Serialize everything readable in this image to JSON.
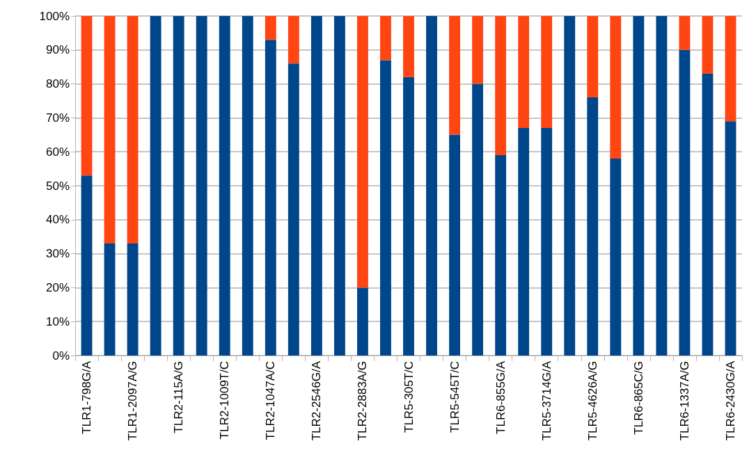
{
  "chart_data": {
    "type": "bar",
    "stacked": true,
    "categories": [
      "TLR1-798G/A",
      null,
      "TLR1-2097A/G",
      null,
      "TLR2-115A/G",
      null,
      "TLR2-1009T/C",
      null,
      "TLR2-1047A/C",
      null,
      "TLR2-2546G/A",
      null,
      "TLR2-2883A/G",
      null,
      "TLR5-305T/C",
      null,
      "TLR5-545T/C",
      null,
      "TLR6-855G/A",
      null,
      "TLR5-3714G/A",
      null,
      "TLR5-4626A/G",
      null,
      "TLR6-865C/G",
      null,
      "TLR6-1337A/G",
      null,
      "TLR6-2430G/A"
    ],
    "series": [
      {
        "color": "#00468b",
        "values": [
          53,
          33,
          33,
          100,
          100,
          100,
          100,
          100,
          93,
          86,
          100,
          100,
          20,
          87,
          82,
          100,
          65,
          80,
          59,
          67,
          67,
          100,
          76,
          58,
          100,
          100,
          90,
          83,
          69
        ]
      },
      {
        "color": "#ff4511",
        "values": [
          47,
          67,
          67,
          0,
          0,
          0,
          0,
          0,
          7,
          14,
          0,
          0,
          80,
          13,
          18,
          0,
          35,
          20,
          41,
          33,
          33,
          0,
          24,
          42,
          0,
          0,
          10,
          17,
          31
        ]
      }
    ],
    "ylim": [
      0,
      100
    ],
    "yticks": [
      {
        "value": 0,
        "label": "0%"
      },
      {
        "value": 10,
        "label": "10%"
      },
      {
        "value": 20,
        "label": "20%"
      },
      {
        "value": 30,
        "label": "30%"
      },
      {
        "value": 40,
        "label": "40%"
      },
      {
        "value": 50,
        "label": "50%"
      },
      {
        "value": 60,
        "label": "60%"
      },
      {
        "value": 70,
        "label": "70%"
      },
      {
        "value": 80,
        "label": "80%"
      },
      {
        "value": 90,
        "label": "90%"
      },
      {
        "value": 100,
        "label": "100%"
      }
    ],
    "grid": "y"
  }
}
